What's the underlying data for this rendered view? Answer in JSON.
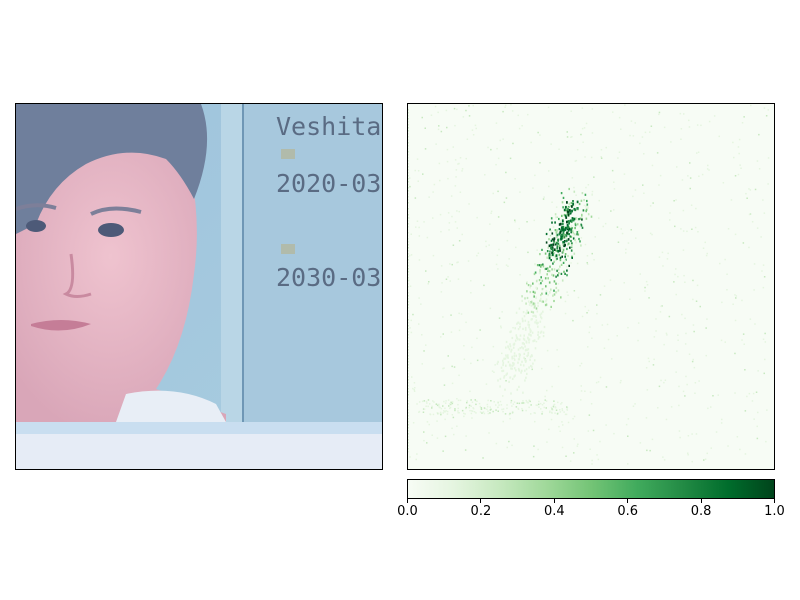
{
  "photo": {
    "text_lines": [
      "Veshita",
      "2020-03",
      "2030-03"
    ]
  },
  "chart_data": {
    "type": "heatmap",
    "title": "",
    "xlabel": "",
    "ylabel": "",
    "colormap": "Greens",
    "colorbar": {
      "range": [
        0.0,
        1.0
      ],
      "ticks": [
        0.0,
        0.2,
        0.4,
        0.6,
        0.8,
        1.0
      ],
      "tick_labels": [
        "0.0",
        "0.2",
        "0.4",
        "0.6",
        "0.8",
        "1.0"
      ]
    },
    "colors": {
      "low": "#f7fcf5",
      "mid": "#74c476",
      "high": "#00441b"
    }
  }
}
